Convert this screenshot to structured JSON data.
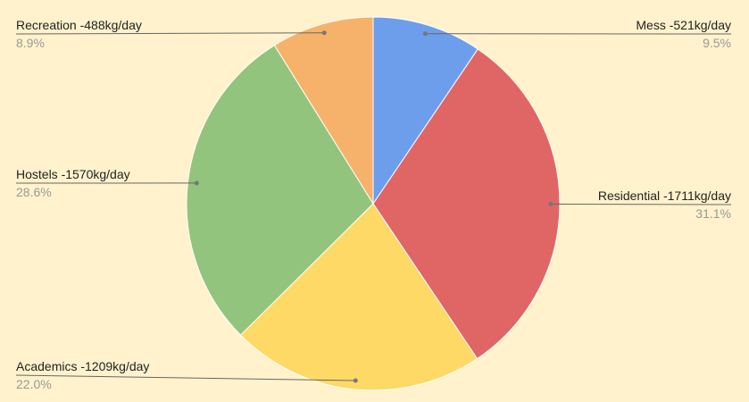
{
  "chart_data": {
    "type": "pie",
    "title": "",
    "start_angle": "top",
    "direction": "clockwise",
    "legend": "labeled leader lines",
    "background": "#fff2cc",
    "slices": [
      {
        "label": "Mess -521kg/day",
        "value": 521,
        "percent": "9.5%",
        "color": "#6d9eeb"
      },
      {
        "label": "Residential -1711kg/day",
        "value": 1711,
        "percent": "31.1%",
        "color": "#e06666"
      },
      {
        "label": "Academics -1209kg/day",
        "value": 1209,
        "percent": "22.0%",
        "color": "#ffd966"
      },
      {
        "label": "Hostels -1570kg/day",
        "value": 1570,
        "percent": "28.6%",
        "color": "#93c47d"
      },
      {
        "label": "Recreation -488kg/day",
        "value": 488,
        "percent": "8.9%",
        "color": "#f6b26b"
      }
    ]
  }
}
